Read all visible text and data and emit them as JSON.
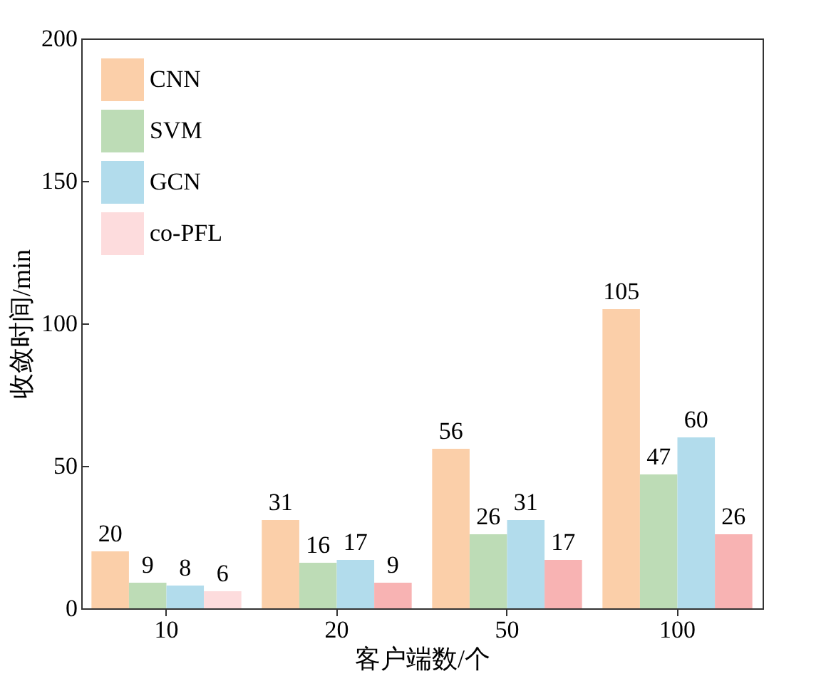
{
  "chart_data": {
    "type": "bar",
    "xlabel": "客户端数/个",
    "ylabel": "收敛时间/min",
    "categories": [
      "10",
      "20",
      "50",
      "100"
    ],
    "series": [
      {
        "name": "CNN",
        "color": "#fbcfa9",
        "values": [
          20,
          31,
          56,
          105
        ]
      },
      {
        "name": "SVM",
        "color": "#bddcb6",
        "values": [
          9,
          16,
          26,
          47
        ]
      },
      {
        "name": "GCN",
        "color": "#b2dcec",
        "values": [
          8,
          17,
          31,
          60
        ]
      },
      {
        "name": "co-PFL",
        "color": "#fddcdd",
        "colors": [
          "#fddcdd",
          "#f8b3b3",
          "#f8b3b3",
          "#f8b3b3"
        ],
        "values": [
          6,
          9,
          17,
          26
        ]
      }
    ],
    "ylim": [
      0,
      200
    ],
    "yticks": [
      0,
      50,
      100,
      150,
      200
    ],
    "data_labels": true,
    "legend": "top left",
    "grid": false
  }
}
